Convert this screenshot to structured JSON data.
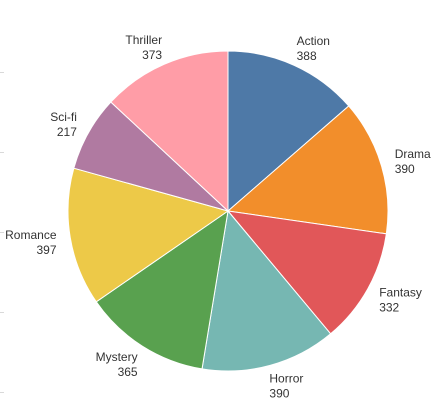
{
  "chart_data": {
    "type": "pie",
    "categories": [
      "Action",
      "Drama",
      "Fantasy",
      "Horror",
      "Mystery",
      "Romance",
      "Sci-fi",
      "Thriller"
    ],
    "values": [
      388,
      390,
      332,
      390,
      365,
      397,
      217,
      373
    ],
    "colors": [
      "#4e79a7",
      "#f28e2b",
      "#e15759",
      "#76b7b2",
      "#59a14f",
      "#edc948",
      "#b07aa1",
      "#ff9da7"
    ],
    "start_angle": "12 o'clock",
    "direction": "clockwise",
    "legend": "none",
    "data_labels": "category name and value outside each slice"
  }
}
